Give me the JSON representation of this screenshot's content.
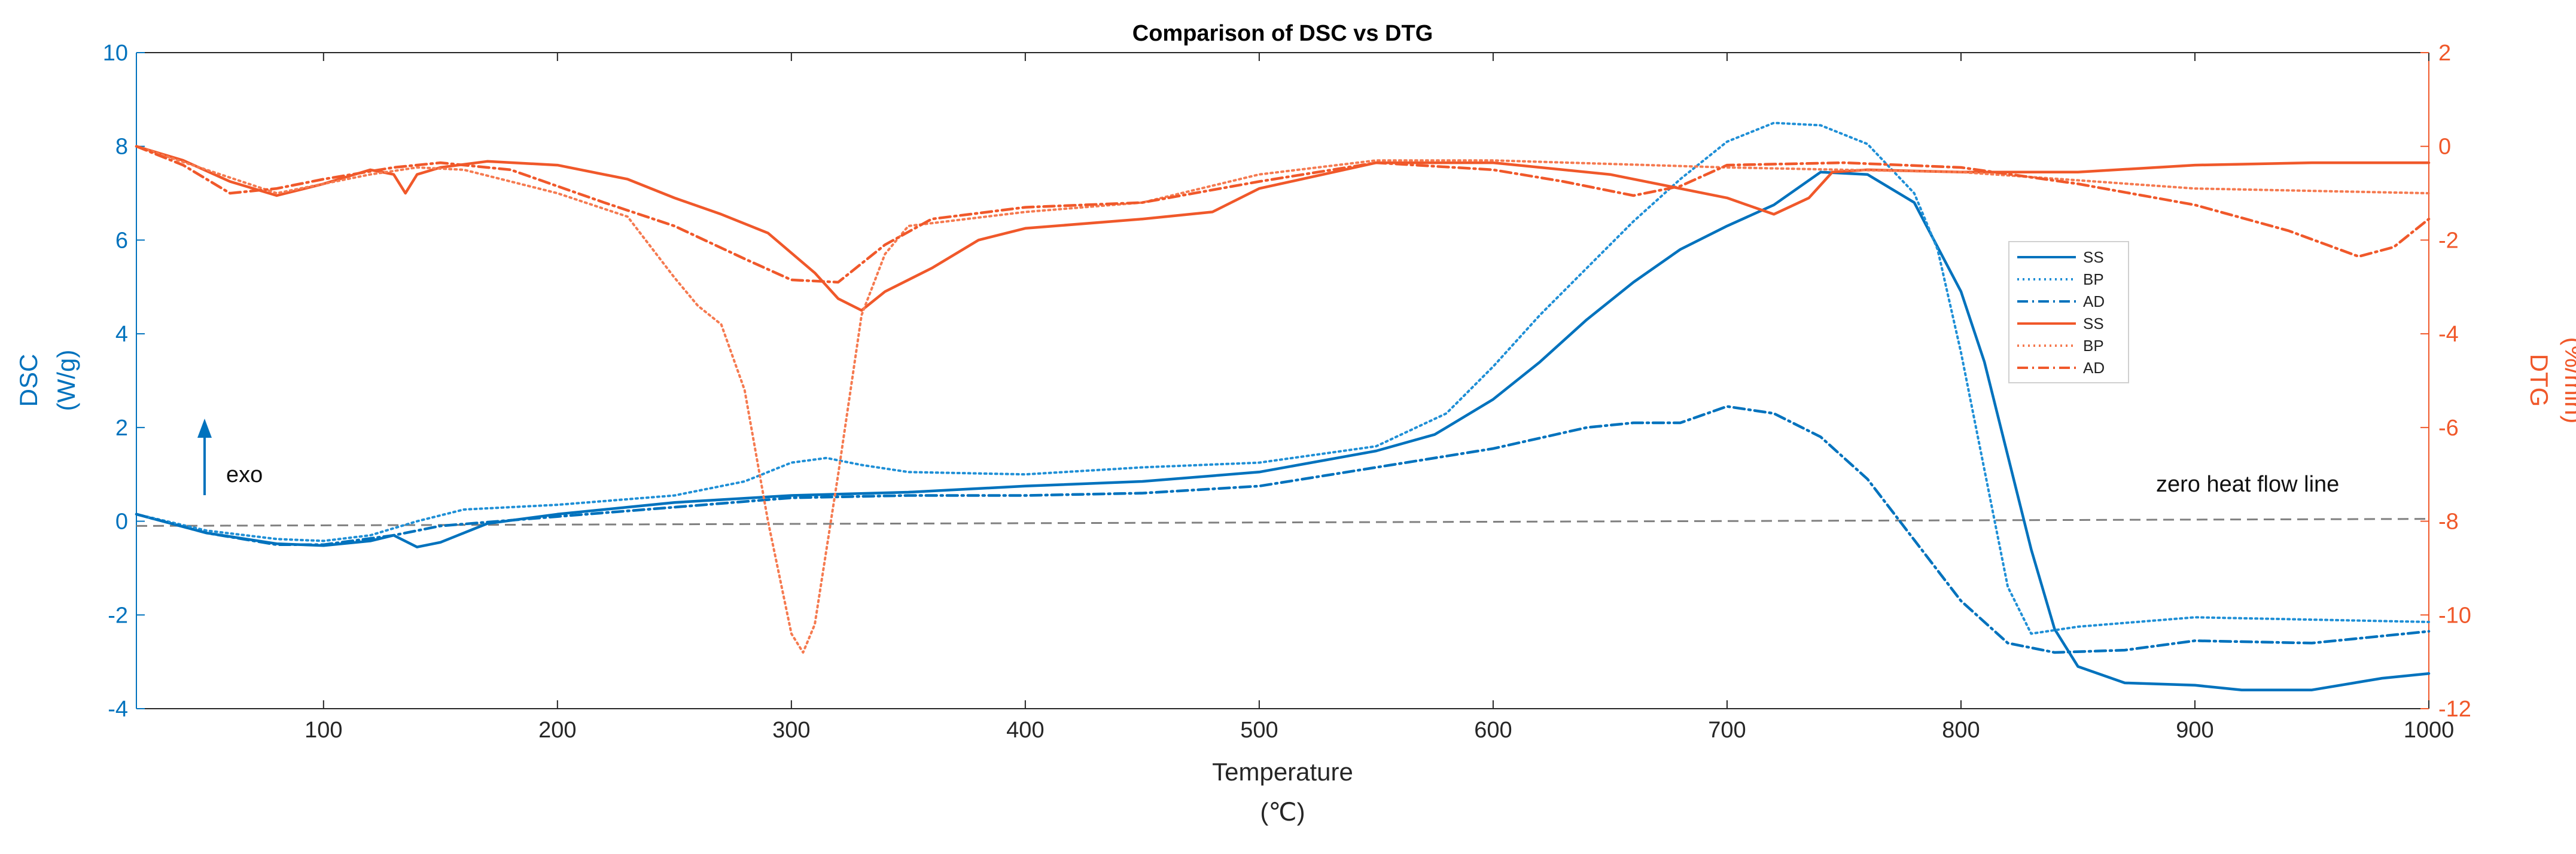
{
  "chart_data": {
    "type": "line",
    "title": "Comparison of DSC vs DTG",
    "xlabel": "Temperature",
    "xlabel_unit": "(℃)",
    "ylabel_left": "DSC",
    "ylabel_left_unit": "(W/g)",
    "ylabel_right": "DTG",
    "ylabel_right_unit": "(%/min)",
    "xlim": [
      20,
      1000
    ],
    "ylim_left": [
      -4,
      10
    ],
    "ylim_right": [
      -12,
      2
    ],
    "x_ticks": [
      100,
      200,
      300,
      400,
      500,
      600,
      700,
      800,
      900,
      1000
    ],
    "y_left_ticks": [
      -4,
      -2,
      0,
      2,
      4,
      6,
      8,
      10
    ],
    "y_right_ticks": [
      -12,
      -10,
      -8,
      -6,
      -4,
      -2,
      0,
      2
    ],
    "grid": false,
    "legend_position": "right",
    "colors": {
      "dsc": "#0072BD",
      "dsc_bp": "#1F8FD6",
      "dtg": "#F0582A",
      "dtg_bp": "#F57A50",
      "axis_left": "#0072BD",
      "axis_right": "#F0582A",
      "zero_line": "#808080"
    },
    "annotations": {
      "exo": "exo",
      "zero_line": "zero heat flow line"
    },
    "legend": [
      {
        "label": "SS",
        "axis": "left",
        "style": "solid"
      },
      {
        "label": "BP",
        "axis": "left",
        "style": "dotted"
      },
      {
        "label": "AD",
        "axis": "left",
        "style": "dashdot"
      },
      {
        "label": "SS",
        "axis": "right",
        "style": "solid"
      },
      {
        "label": "BP",
        "axis": "right",
        "style": "dotted"
      },
      {
        "label": "AD",
        "axis": "right",
        "style": "dashdot"
      }
    ],
    "zero_line_values": [
      [
        20,
        -0.1
      ],
      [
        1000,
        0.05
      ]
    ],
    "series": [
      {
        "name": "SS",
        "axis": "left",
        "style": "solid",
        "points": [
          [
            20,
            0.15
          ],
          [
            50,
            -0.25
          ],
          [
            80,
            -0.48
          ],
          [
            100,
            -0.52
          ],
          [
            120,
            -0.42
          ],
          [
            130,
            -0.3
          ],
          [
            140,
            -0.55
          ],
          [
            150,
            -0.45
          ],
          [
            170,
            -0.05
          ],
          [
            200,
            0.15
          ],
          [
            250,
            0.4
          ],
          [
            300,
            0.55
          ],
          [
            350,
            0.62
          ],
          [
            400,
            0.75
          ],
          [
            450,
            0.85
          ],
          [
            500,
            1.05
          ],
          [
            550,
            1.5
          ],
          [
            575,
            1.85
          ],
          [
            600,
            2.6
          ],
          [
            620,
            3.4
          ],
          [
            640,
            4.3
          ],
          [
            660,
            5.1
          ],
          [
            680,
            5.8
          ],
          [
            700,
            6.3
          ],
          [
            720,
            6.75
          ],
          [
            740,
            7.45
          ],
          [
            760,
            7.4
          ],
          [
            780,
            6.8
          ],
          [
            800,
            4.9
          ],
          [
            810,
            3.4
          ],
          [
            820,
            1.4
          ],
          [
            830,
            -0.6
          ],
          [
            840,
            -2.3
          ],
          [
            850,
            -3.1
          ],
          [
            870,
            -3.45
          ],
          [
            900,
            -3.5
          ],
          [
            920,
            -3.6
          ],
          [
            950,
            -3.6
          ],
          [
            980,
            -3.35
          ],
          [
            1000,
            -3.25
          ]
        ]
      },
      {
        "name": "BP",
        "axis": "left",
        "style": "dotted",
        "points": [
          [
            20,
            0.15
          ],
          [
            50,
            -0.2
          ],
          [
            80,
            -0.38
          ],
          [
            100,
            -0.42
          ],
          [
            120,
            -0.3
          ],
          [
            140,
            0.0
          ],
          [
            160,
            0.25
          ],
          [
            200,
            0.35
          ],
          [
            250,
            0.55
          ],
          [
            280,
            0.85
          ],
          [
            300,
            1.25
          ],
          [
            315,
            1.35
          ],
          [
            330,
            1.2
          ],
          [
            350,
            1.05
          ],
          [
            400,
            1.0
          ],
          [
            450,
            1.15
          ],
          [
            500,
            1.25
          ],
          [
            550,
            1.6
          ],
          [
            580,
            2.3
          ],
          [
            600,
            3.3
          ],
          [
            620,
            4.4
          ],
          [
            640,
            5.4
          ],
          [
            660,
            6.4
          ],
          [
            680,
            7.3
          ],
          [
            700,
            8.1
          ],
          [
            720,
            8.5
          ],
          [
            740,
            8.45
          ],
          [
            760,
            8.05
          ],
          [
            780,
            7.0
          ],
          [
            790,
            5.8
          ],
          [
            800,
            3.6
          ],
          [
            810,
            1.1
          ],
          [
            820,
            -1.4
          ],
          [
            830,
            -2.4
          ],
          [
            850,
            -2.25
          ],
          [
            900,
            -2.05
          ],
          [
            950,
            -2.1
          ],
          [
            1000,
            -2.15
          ]
        ]
      },
      {
        "name": "AD",
        "axis": "left",
        "style": "dashdot",
        "points": [
          [
            20,
            0.15
          ],
          [
            50,
            -0.25
          ],
          [
            80,
            -0.5
          ],
          [
            100,
            -0.5
          ],
          [
            130,
            -0.3
          ],
          [
            150,
            -0.1
          ],
          [
            200,
            0.1
          ],
          [
            250,
            0.3
          ],
          [
            300,
            0.5
          ],
          [
            350,
            0.55
          ],
          [
            400,
            0.55
          ],
          [
            450,
            0.6
          ],
          [
            500,
            0.75
          ],
          [
            550,
            1.15
          ],
          [
            600,
            1.55
          ],
          [
            640,
            2.0
          ],
          [
            660,
            2.1
          ],
          [
            680,
            2.1
          ],
          [
            700,
            2.45
          ],
          [
            720,
            2.3
          ],
          [
            740,
            1.8
          ],
          [
            760,
            0.9
          ],
          [
            780,
            -0.4
          ],
          [
            800,
            -1.7
          ],
          [
            820,
            -2.6
          ],
          [
            840,
            -2.8
          ],
          [
            870,
            -2.75
          ],
          [
            900,
            -2.55
          ],
          [
            950,
            -2.6
          ],
          [
            1000,
            -2.35
          ]
        ]
      },
      {
        "name": "SS",
        "axis": "right",
        "style": "solid",
        "points": [
          [
            20,
            0.0
          ],
          [
            40,
            -0.3
          ],
          [
            60,
            -0.75
          ],
          [
            80,
            -1.05
          ],
          [
            100,
            -0.8
          ],
          [
            120,
            -0.5
          ],
          [
            130,
            -0.6
          ],
          [
            135,
            -1.0
          ],
          [
            140,
            -0.6
          ],
          [
            150,
            -0.45
          ],
          [
            170,
            -0.32
          ],
          [
            200,
            -0.4
          ],
          [
            230,
            -0.7
          ],
          [
            250,
            -1.1
          ],
          [
            270,
            -1.45
          ],
          [
            290,
            -1.85
          ],
          [
            310,
            -2.7
          ],
          [
            320,
            -3.25
          ],
          [
            330,
            -3.5
          ],
          [
            340,
            -3.1
          ],
          [
            360,
            -2.6
          ],
          [
            380,
            -2.0
          ],
          [
            400,
            -1.75
          ],
          [
            450,
            -1.55
          ],
          [
            480,
            -1.4
          ],
          [
            500,
            -0.9
          ],
          [
            550,
            -0.35
          ],
          [
            600,
            -0.35
          ],
          [
            650,
            -0.6
          ],
          [
            700,
            -1.1
          ],
          [
            720,
            -1.45
          ],
          [
            735,
            -1.1
          ],
          [
            745,
            -0.55
          ],
          [
            760,
            -0.5
          ],
          [
            800,
            -0.55
          ],
          [
            850,
            -0.55
          ],
          [
            900,
            -0.4
          ],
          [
            950,
            -0.35
          ],
          [
            1000,
            -0.35
          ]
        ]
      },
      {
        "name": "BP",
        "axis": "right",
        "style": "dotted",
        "points": [
          [
            20,
            0.0
          ],
          [
            50,
            -0.5
          ],
          [
            80,
            -1.0
          ],
          [
            100,
            -0.8
          ],
          [
            120,
            -0.6
          ],
          [
            140,
            -0.45
          ],
          [
            160,
            -0.5
          ],
          [
            200,
            -1.0
          ],
          [
            230,
            -1.5
          ],
          [
            250,
            -2.8
          ],
          [
            260,
            -3.4
          ],
          [
            270,
            -3.8
          ],
          [
            280,
            -5.2
          ],
          [
            290,
            -8.0
          ],
          [
            300,
            -10.4
          ],
          [
            305,
            -10.8
          ],
          [
            310,
            -10.2
          ],
          [
            320,
            -7.0
          ],
          [
            330,
            -3.6
          ],
          [
            340,
            -2.3
          ],
          [
            350,
            -1.7
          ],
          [
            400,
            -1.4
          ],
          [
            450,
            -1.2
          ],
          [
            500,
            -0.6
          ],
          [
            550,
            -0.3
          ],
          [
            600,
            -0.3
          ],
          [
            700,
            -0.45
          ],
          [
            800,
            -0.55
          ],
          [
            900,
            -0.9
          ],
          [
            1000,
            -1.0
          ]
        ]
      },
      {
        "name": "AD",
        "axis": "right",
        "style": "dashdot",
        "points": [
          [
            20,
            0.0
          ],
          [
            40,
            -0.4
          ],
          [
            60,
            -1.0
          ],
          [
            80,
            -0.9
          ],
          [
            100,
            -0.7
          ],
          [
            130,
            -0.45
          ],
          [
            150,
            -0.35
          ],
          [
            180,
            -0.5
          ],
          [
            220,
            -1.2
          ],
          [
            250,
            -1.7
          ],
          [
            280,
            -2.4
          ],
          [
            300,
            -2.85
          ],
          [
            320,
            -2.9
          ],
          [
            340,
            -2.1
          ],
          [
            360,
            -1.55
          ],
          [
            400,
            -1.3
          ],
          [
            450,
            -1.2
          ],
          [
            500,
            -0.75
          ],
          [
            550,
            -0.35
          ],
          [
            600,
            -0.5
          ],
          [
            630,
            -0.75
          ],
          [
            660,
            -1.05
          ],
          [
            680,
            -0.85
          ],
          [
            700,
            -0.4
          ],
          [
            750,
            -0.35
          ],
          [
            800,
            -0.45
          ],
          [
            850,
            -0.8
          ],
          [
            900,
            -1.25
          ],
          [
            940,
            -1.8
          ],
          [
            970,
            -2.35
          ],
          [
            985,
            -2.15
          ],
          [
            1000,
            -1.55
          ]
        ]
      }
    ]
  }
}
